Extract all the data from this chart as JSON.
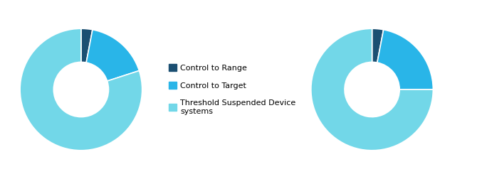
{
  "chart1": {
    "values": [
      3,
      17,
      80
    ],
    "colors": [
      "#1b4f72",
      "#29b5e8",
      "#72d7e8"
    ],
    "startangle": 90
  },
  "chart2": {
    "values": [
      3,
      22,
      75
    ],
    "colors": [
      "#1b4f72",
      "#29b5e8",
      "#72d7e8"
    ],
    "startangle": 90
  },
  "legend": [
    {
      "label": "Control to Range",
      "color": "#1b4f72"
    },
    {
      "label": "Control to Target",
      "color": "#29b5e8"
    },
    {
      "label": "Threshold Suspended Device\nsystems",
      "color": "#72d7e8"
    }
  ],
  "wedge_linewidth": 1.2,
  "wedge_linecolor": "white",
  "donut_width": 0.55,
  "fig_width": 6.7,
  "fig_height": 2.52,
  "dpi": 100
}
